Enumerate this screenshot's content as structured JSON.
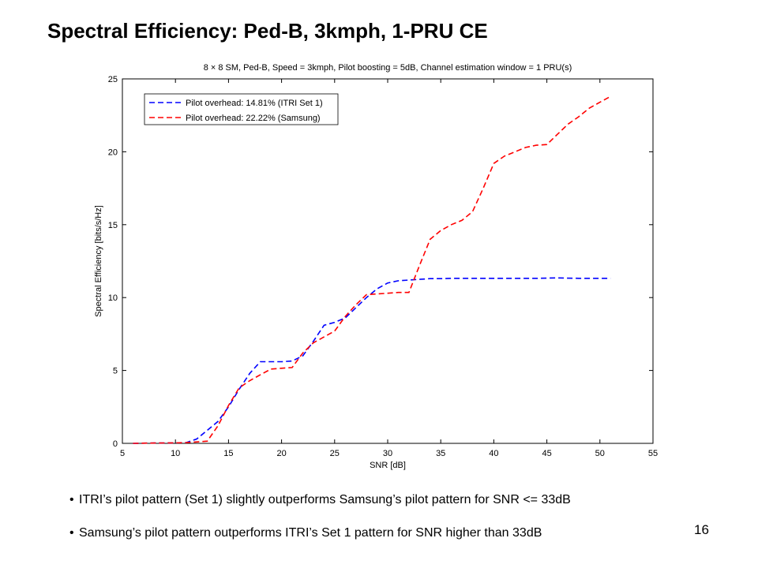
{
  "slide": {
    "title": "Spectral Efficiency: Ped-B, 3kmph, 1-PRU CE",
    "page_number": "16",
    "bullets": [
      "ITRI’s pilot pattern (Set 1) slightly outperforms Samsung’s pilot pattern for SNR <= 33dB",
      "Samsung’s pilot pattern outperforms ITRI’s Set 1 pattern for SNR higher than 33dB"
    ]
  },
  "chart_data": {
    "type": "line",
    "title": "8 × 8  SM, Ped-B, Speed = 3kmph, Pilot boosting = 5dB, Channel estimation window = 1 PRU(s)",
    "xlabel": "SNR [dB]",
    "ylabel": "Spectral Efficiency [bits/s/Hz]",
    "xlim": [
      5,
      55
    ],
    "ylim": [
      0,
      25
    ],
    "xticks": [
      5,
      10,
      15,
      20,
      25,
      30,
      35,
      40,
      45,
      50,
      55
    ],
    "yticks": [
      0,
      5,
      10,
      15,
      20,
      25
    ],
    "grid": false,
    "legend_position": "top-left",
    "series": [
      {
        "name": "Pilot overhead: 14.81% (ITRI Set 1)",
        "color": "#0000ff",
        "dash": "dashed",
        "x": [
          6,
          8,
          10,
          11,
          12,
          14,
          15,
          16,
          17,
          18,
          19,
          20,
          21,
          22,
          23,
          24,
          25,
          26,
          27,
          28,
          29,
          30,
          31,
          32,
          33,
          34,
          35,
          36,
          38,
          40,
          42,
          44,
          46,
          48,
          50,
          51
        ],
        "y": [
          0,
          0.02,
          0.03,
          0.05,
          0.3,
          1.5,
          2.5,
          3.7,
          4.8,
          5.6,
          5.6,
          5.6,
          5.65,
          6.0,
          7.0,
          8.1,
          8.3,
          8.6,
          9.3,
          10.0,
          10.6,
          11.0,
          11.15,
          11.2,
          11.25,
          11.3,
          11.3,
          11.32,
          11.32,
          11.32,
          11.32,
          11.32,
          11.35,
          11.32,
          11.32,
          11.32
        ]
      },
      {
        "name": "Pilot overhead: 22.22% (Samsung)",
        "color": "#ff0000",
        "dash": "dashed",
        "x": [
          6,
          8,
          10,
          11,
          12,
          13,
          14,
          15,
          16,
          17,
          18,
          19,
          20,
          21,
          22,
          23,
          24,
          25,
          26,
          27,
          28,
          29,
          30,
          31,
          32,
          33,
          34,
          35,
          36,
          37,
          38,
          39,
          40,
          41,
          42,
          43,
          44,
          45,
          46,
          47,
          48,
          49,
          50,
          51
        ],
        "y": [
          0,
          0.02,
          0.03,
          0.05,
          0.1,
          0.15,
          1.2,
          2.6,
          3.8,
          4.3,
          4.7,
          5.1,
          5.15,
          5.2,
          6.2,
          6.9,
          7.3,
          7.7,
          8.7,
          9.5,
          10.2,
          10.25,
          10.3,
          10.35,
          10.35,
          12.2,
          14.0,
          14.6,
          15.0,
          15.3,
          15.9,
          17.5,
          19.2,
          19.7,
          20.0,
          20.3,
          20.45,
          20.5,
          21.2,
          21.9,
          22.4,
          23.0,
          23.4,
          23.8
        ]
      }
    ]
  }
}
